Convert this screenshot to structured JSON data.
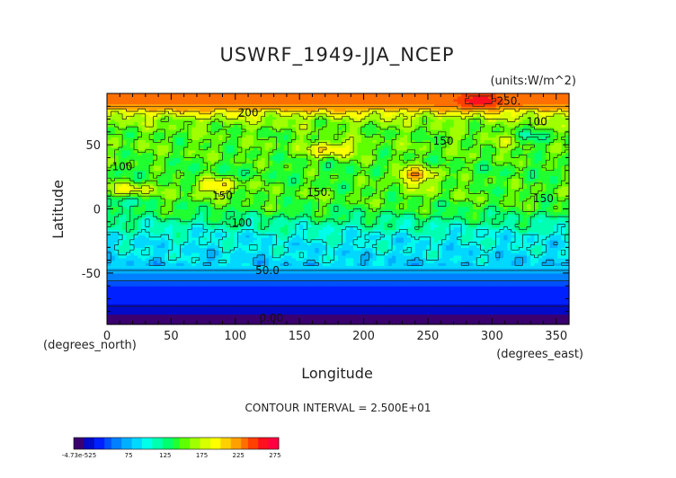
{
  "chart_data": {
    "type": "heatmap",
    "title": "USWRF_1949-JJA_NCEP",
    "units": "(units:W/m^2)",
    "xlabel": "Longitude",
    "ylabel": "Latitude",
    "x_unit_label": "(degrees_east)",
    "y_unit_label": "(degrees_north)",
    "xlim": [
      0,
      360
    ],
    "ylim": [
      -90,
      90
    ],
    "x_ticks": [
      0,
      50,
      100,
      150,
      200,
      250,
      300,
      350
    ],
    "y_ticks": [
      -50,
      0,
      50
    ],
    "contour_interval_text": "CONTOUR INTERVAL = 2.500E+01",
    "contour_labels": [
      {
        "text": "250.",
        "lon": 313,
        "lat": 84
      },
      {
        "text": "200",
        "lon": 110,
        "lat": 75
      },
      {
        "text": "100",
        "lon": 335,
        "lat": 68
      },
      {
        "text": "150",
        "lon": 262,
        "lat": 53
      },
      {
        "text": "100",
        "lon": 12,
        "lat": 33
      },
      {
        "text": "150",
        "lon": 90,
        "lat": 10
      },
      {
        "text": "150.",
        "lon": 165,
        "lat": 13
      },
      {
        "text": "150",
        "lon": 340,
        "lat": 8
      },
      {
        "text": "100",
        "lon": 105,
        "lat": -11
      },
      {
        "text": "50.0",
        "lon": 125,
        "lat": -48
      },
      {
        "text": "0.00",
        "lon": 128,
        "lat": -85
      }
    ],
    "colorbar": {
      "tick_labels": [
        "-4.73e-525",
        "75",
        "125",
        "175",
        "225",
        "275"
      ],
      "tick_values": [
        0,
        75,
        125,
        175,
        225,
        275
      ],
      "range": [
        0,
        280
      ],
      "colors": [
        "#3a006f",
        "#000ac8",
        "#0020ff",
        "#0050ff",
        "#0080ff",
        "#00b0ff",
        "#00d8ff",
        "#00ffea",
        "#00ffb0",
        "#00ff70",
        "#20ff30",
        "#60ff00",
        "#a0ff00",
        "#d8ff00",
        "#ffff00",
        "#ffd000",
        "#ffa000",
        "#ff7000",
        "#ff4000",
        "#ff1020",
        "#ff0040"
      ]
    },
    "zonal_profile": [
      {
        "lat": -90,
        "value": 0
      },
      {
        "lat": -85,
        "value": 2
      },
      {
        "lat": -80,
        "value": 20
      },
      {
        "lat": -70,
        "value": 30
      },
      {
        "lat": -60,
        "value": 40
      },
      {
        "lat": -55,
        "value": 55
      },
      {
        "lat": -50,
        "value": 68
      },
      {
        "lat": -45,
        "value": 80
      },
      {
        "lat": -40,
        "value": 88
      },
      {
        "lat": -30,
        "value": 95
      },
      {
        "lat": -20,
        "value": 100
      },
      {
        "lat": -15,
        "value": 110
      },
      {
        "lat": -10,
        "value": 120
      },
      {
        "lat": 0,
        "value": 140
      },
      {
        "lat": 10,
        "value": 150
      },
      {
        "lat": 20,
        "value": 145
      },
      {
        "lat": 30,
        "value": 140
      },
      {
        "lat": 40,
        "value": 148
      },
      {
        "lat": 50,
        "value": 152
      },
      {
        "lat": 60,
        "value": 150
      },
      {
        "lat": 70,
        "value": 165
      },
      {
        "lat": 75,
        "value": 190
      },
      {
        "lat": 80,
        "value": 225
      },
      {
        "lat": 85,
        "value": 230
      },
      {
        "lat": 90,
        "value": 230
      }
    ],
    "anomalies": [
      {
        "lon": 290,
        "lat": 84,
        "value": 262
      },
      {
        "lon": 240,
        "lat": 27,
        "value": 215
      },
      {
        "lon": 175,
        "lat": 47,
        "value": 205
      },
      {
        "lon": 85,
        "lat": 18,
        "value": 200
      },
      {
        "lon": 18,
        "lat": 15,
        "value": 190
      },
      {
        "lon": 250,
        "lat": 18,
        "value": 165
      },
      {
        "lon": 310,
        "lat": 52,
        "value": 175
      },
      {
        "lon": 10,
        "lat": 5,
        "value": 105
      },
      {
        "lon": 330,
        "lat": 55,
        "value": 120
      }
    ],
    "grid": false,
    "legend": "bottom-left colorbar"
  }
}
